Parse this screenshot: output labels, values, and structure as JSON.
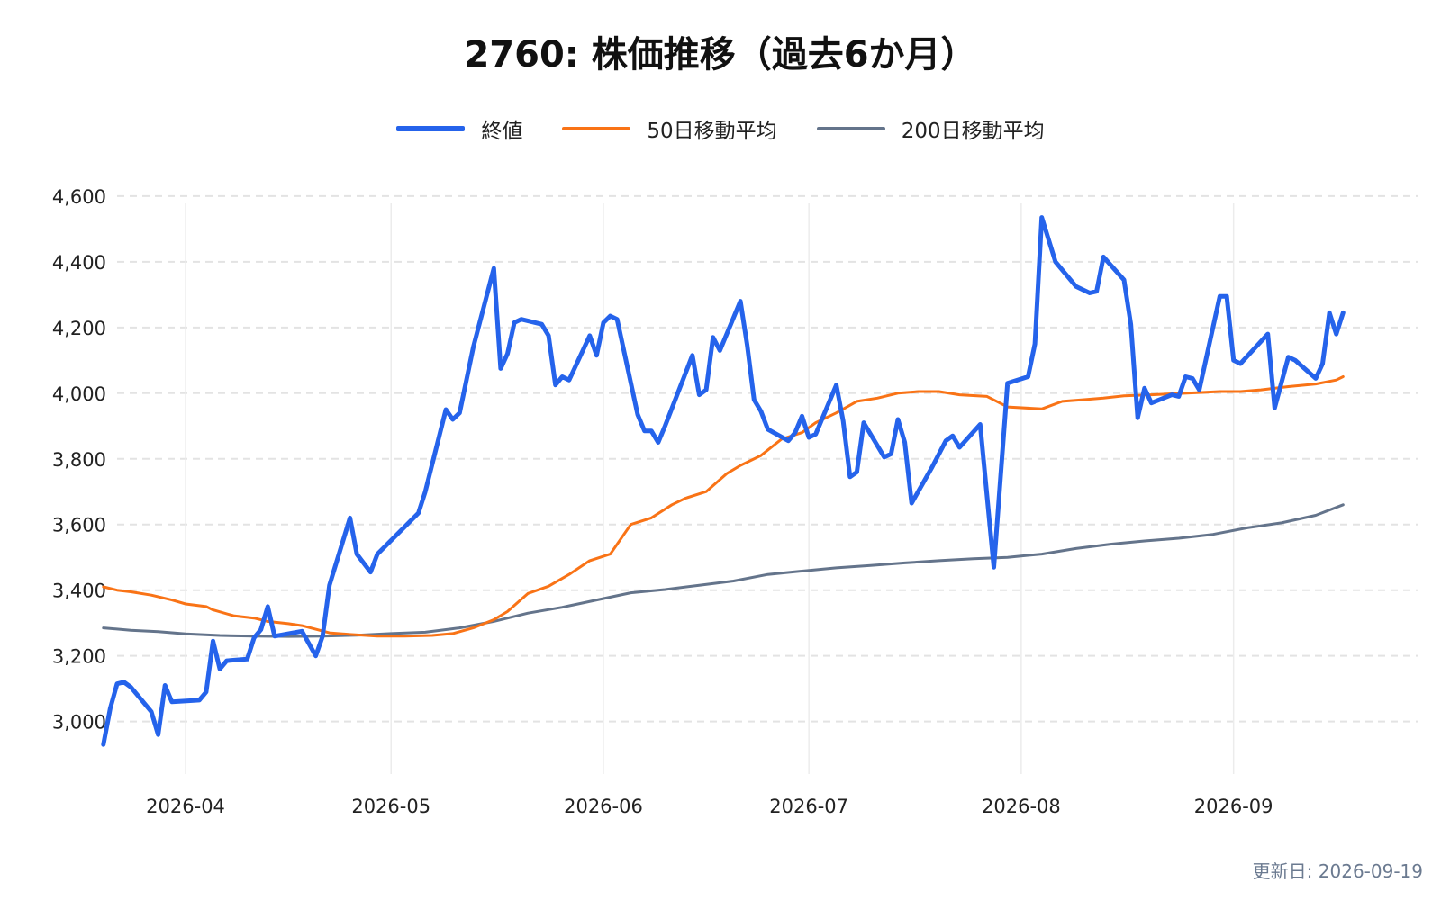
{
  "chart_data": {
    "type": "line",
    "title": "2760: 株価推移（過去6か月）",
    "xlabel": "",
    "ylabel": "",
    "xlim": [
      "2026-03-22",
      "2026-09-28"
    ],
    "ylim": [
      2840,
      4660
    ],
    "yticks": [
      3000,
      3200,
      3400,
      3600,
      3800,
      4000,
      4200,
      4400,
      4600
    ],
    "ytick_labels": [
      "3,000",
      "3,200",
      "3,400",
      "3,600",
      "3,800",
      "4,000",
      "4,200",
      "4,400",
      "4,600"
    ],
    "xticks": [
      "2026-04-01",
      "2026-05-01",
      "2026-06-01",
      "2026-07-01",
      "2026-08-01",
      "2026-09-01"
    ],
    "xtick_labels": [
      "2026-04",
      "2026-05",
      "2026-06",
      "2026-07",
      "2026-08",
      "2026-09"
    ],
    "grid": true,
    "legend_position": "top-center",
    "series": [
      {
        "name": "終値",
        "color": "#2563eb",
        "width": 5,
        "points": [
          [
            "2026-03-20",
            2930
          ],
          [
            "2026-03-21",
            3040
          ],
          [
            "2026-03-22",
            3115
          ],
          [
            "2026-03-23",
            3120
          ],
          [
            "2026-03-24",
            3105
          ],
          [
            "2026-03-27",
            3030
          ],
          [
            "2026-03-28",
            2960
          ],
          [
            "2026-03-29",
            3110
          ],
          [
            "2026-03-30",
            3060
          ],
          [
            "2026-04-03",
            3065
          ],
          [
            "2026-04-04",
            3090
          ],
          [
            "2026-04-05",
            3245
          ],
          [
            "2026-04-06",
            3160
          ],
          [
            "2026-04-07",
            3185
          ],
          [
            "2026-04-10",
            3190
          ],
          [
            "2026-04-11",
            3255
          ],
          [
            "2026-04-12",
            3280
          ],
          [
            "2026-04-13",
            3350
          ],
          [
            "2026-04-14",
            3260
          ],
          [
            "2026-04-18",
            3275
          ],
          [
            "2026-04-20",
            3200
          ],
          [
            "2026-04-21",
            3260
          ],
          [
            "2026-04-22",
            3415
          ],
          [
            "2026-04-25",
            3620
          ],
          [
            "2026-04-26",
            3510
          ],
          [
            "2026-04-28",
            3455
          ],
          [
            "2026-04-29",
            3510
          ],
          [
            "2026-05-05",
            3635
          ],
          [
            "2026-05-06",
            3700
          ],
          [
            "2026-05-09",
            3950
          ],
          [
            "2026-05-10",
            3920
          ],
          [
            "2026-05-11",
            3940
          ],
          [
            "2026-05-13",
            4140
          ],
          [
            "2026-05-16",
            4380
          ],
          [
            "2026-05-17",
            4075
          ],
          [
            "2026-05-18",
            4120
          ],
          [
            "2026-05-19",
            4215
          ],
          [
            "2026-05-20",
            4225
          ],
          [
            "2026-05-23",
            4210
          ],
          [
            "2026-05-24",
            4175
          ],
          [
            "2026-05-25",
            4025
          ],
          [
            "2026-05-26",
            4050
          ],
          [
            "2026-05-27",
            4040
          ],
          [
            "2026-05-30",
            4175
          ],
          [
            "2026-05-31",
            4115
          ],
          [
            "2026-06-01",
            4215
          ],
          [
            "2026-06-02",
            4235
          ],
          [
            "2026-06-03",
            4225
          ],
          [
            "2026-06-06",
            3935
          ],
          [
            "2026-06-07",
            3885
          ],
          [
            "2026-06-08",
            3885
          ],
          [
            "2026-06-09",
            3850
          ],
          [
            "2026-06-10",
            3900
          ],
          [
            "2026-06-14",
            4115
          ],
          [
            "2026-06-15",
            3995
          ],
          [
            "2026-06-16",
            4010
          ],
          [
            "2026-06-17",
            4170
          ],
          [
            "2026-06-18",
            4130
          ],
          [
            "2026-06-21",
            4280
          ],
          [
            "2026-06-22",
            4145
          ],
          [
            "2026-06-23",
            3980
          ],
          [
            "2026-06-24",
            3945
          ],
          [
            "2026-06-25",
            3890
          ],
          [
            "2026-06-28",
            3855
          ],
          [
            "2026-06-29",
            3880
          ],
          [
            "2026-06-30",
            3930
          ],
          [
            "2026-07-01",
            3865
          ],
          [
            "2026-07-02",
            3875
          ],
          [
            "2026-07-05",
            4025
          ],
          [
            "2026-07-06",
            3915
          ],
          [
            "2026-07-07",
            3745
          ],
          [
            "2026-07-08",
            3760
          ],
          [
            "2026-07-09",
            3910
          ],
          [
            "2026-07-12",
            3805
          ],
          [
            "2026-07-13",
            3815
          ],
          [
            "2026-07-14",
            3920
          ],
          [
            "2026-07-15",
            3850
          ],
          [
            "2026-07-16",
            3665
          ],
          [
            "2026-07-19",
            3775
          ],
          [
            "2026-07-21",
            3855
          ],
          [
            "2026-07-22",
            3870
          ],
          [
            "2026-07-23",
            3835
          ],
          [
            "2026-07-26",
            3905
          ],
          [
            "2026-07-28",
            3470
          ],
          [
            "2026-07-30",
            4030
          ],
          [
            "2026-08-02",
            4050
          ],
          [
            "2026-08-03",
            4150
          ],
          [
            "2026-08-04",
            4535
          ],
          [
            "2026-08-06",
            4400
          ],
          [
            "2026-08-09",
            4325
          ],
          [
            "2026-08-11",
            4305
          ],
          [
            "2026-08-12",
            4310
          ],
          [
            "2026-08-13",
            4415
          ],
          [
            "2026-08-16",
            4345
          ],
          [
            "2026-08-17",
            4210
          ],
          [
            "2026-08-18",
            3925
          ],
          [
            "2026-08-19",
            4015
          ],
          [
            "2026-08-20",
            3970
          ],
          [
            "2026-08-23",
            3995
          ],
          [
            "2026-08-24",
            3990
          ],
          [
            "2026-08-25",
            4050
          ],
          [
            "2026-08-26",
            4045
          ],
          [
            "2026-08-27",
            4010
          ],
          [
            "2026-08-30",
            4295
          ],
          [
            "2026-08-31",
            4295
          ],
          [
            "2026-09-01",
            4100
          ],
          [
            "2026-09-02",
            4090
          ],
          [
            "2026-09-06",
            4180
          ],
          [
            "2026-09-07",
            3955
          ],
          [
            "2026-09-09",
            4110
          ],
          [
            "2026-09-10",
            4100
          ],
          [
            "2026-09-13",
            4045
          ],
          [
            "2026-09-14",
            4090
          ],
          [
            "2026-09-15",
            4245
          ],
          [
            "2026-09-16",
            4180
          ],
          [
            "2026-09-17",
            4245
          ]
        ]
      },
      {
        "name": "50日移動平均",
        "color": "#f97316",
        "width": 3,
        "points": [
          [
            "2026-03-20",
            3410
          ],
          [
            "2026-03-22",
            3400
          ],
          [
            "2026-03-24",
            3395
          ],
          [
            "2026-03-27",
            3385
          ],
          [
            "2026-03-30",
            3370
          ],
          [
            "2026-04-01",
            3358
          ],
          [
            "2026-04-04",
            3350
          ],
          [
            "2026-04-05",
            3340
          ],
          [
            "2026-04-08",
            3322
          ],
          [
            "2026-04-11",
            3315
          ],
          [
            "2026-04-13",
            3305
          ],
          [
            "2026-04-16",
            3298
          ],
          [
            "2026-04-18",
            3292
          ],
          [
            "2026-04-22",
            3270
          ],
          [
            "2026-04-25",
            3265
          ],
          [
            "2026-04-29",
            3260
          ],
          [
            "2026-05-03",
            3260
          ],
          [
            "2026-05-07",
            3262
          ],
          [
            "2026-05-10",
            3268
          ],
          [
            "2026-05-13",
            3285
          ],
          [
            "2026-05-16",
            3310
          ],
          [
            "2026-05-18",
            3335
          ],
          [
            "2026-05-21",
            3390
          ],
          [
            "2026-05-24",
            3412
          ],
          [
            "2026-05-27",
            3448
          ],
          [
            "2026-05-30",
            3490
          ],
          [
            "2026-06-02",
            3510
          ],
          [
            "2026-06-05",
            3600
          ],
          [
            "2026-06-08",
            3620
          ],
          [
            "2026-06-11",
            3660
          ],
          [
            "2026-06-13",
            3680
          ],
          [
            "2026-06-16",
            3700
          ],
          [
            "2026-06-19",
            3755
          ],
          [
            "2026-06-21",
            3780
          ],
          [
            "2026-06-24",
            3810
          ],
          [
            "2026-06-27",
            3860
          ],
          [
            "2026-06-30",
            3880
          ],
          [
            "2026-07-02",
            3910
          ],
          [
            "2026-07-05",
            3940
          ],
          [
            "2026-07-08",
            3975
          ],
          [
            "2026-07-11",
            3985
          ],
          [
            "2026-07-14",
            4000
          ],
          [
            "2026-07-17",
            4005
          ],
          [
            "2026-07-20",
            4005
          ],
          [
            "2026-07-23",
            3995
          ],
          [
            "2026-07-27",
            3990
          ],
          [
            "2026-07-30",
            3958
          ],
          [
            "2026-08-04",
            3952
          ],
          [
            "2026-08-07",
            3975
          ],
          [
            "2026-08-10",
            3980
          ],
          [
            "2026-08-13",
            3985
          ],
          [
            "2026-08-16",
            3992
          ],
          [
            "2026-08-20",
            3995
          ],
          [
            "2026-08-23",
            3998
          ],
          [
            "2026-08-27",
            4002
          ],
          [
            "2026-08-30",
            4005
          ],
          [
            "2026-09-02",
            4005
          ],
          [
            "2026-09-05",
            4010
          ],
          [
            "2026-09-09",
            4020
          ],
          [
            "2026-09-13",
            4028
          ],
          [
            "2026-09-16",
            4040
          ],
          [
            "2026-09-17",
            4050
          ]
        ]
      },
      {
        "name": "200日移動平均",
        "color": "#64748b",
        "width": 3,
        "points": [
          [
            "2026-03-20",
            3285
          ],
          [
            "2026-03-24",
            3278
          ],
          [
            "2026-03-28",
            3274
          ],
          [
            "2026-04-01",
            3267
          ],
          [
            "2026-04-06",
            3262
          ],
          [
            "2026-04-11",
            3260
          ],
          [
            "2026-04-16",
            3259
          ],
          [
            "2026-04-21",
            3260
          ],
          [
            "2026-04-26",
            3263
          ],
          [
            "2026-05-01",
            3268
          ],
          [
            "2026-05-06",
            3272
          ],
          [
            "2026-05-11",
            3285
          ],
          [
            "2026-05-16",
            3305
          ],
          [
            "2026-05-21",
            3330
          ],
          [
            "2026-05-26",
            3348
          ],
          [
            "2026-05-31",
            3370
          ],
          [
            "2026-06-05",
            3392
          ],
          [
            "2026-06-10",
            3402
          ],
          [
            "2026-06-15",
            3415
          ],
          [
            "2026-06-20",
            3428
          ],
          [
            "2026-06-25",
            3448
          ],
          [
            "2026-06-30",
            3458
          ],
          [
            "2026-07-05",
            3468
          ],
          [
            "2026-07-10",
            3475
          ],
          [
            "2026-07-15",
            3483
          ],
          [
            "2026-07-20",
            3490
          ],
          [
            "2026-07-25",
            3496
          ],
          [
            "2026-07-30",
            3500
          ],
          [
            "2026-08-04",
            3510
          ],
          [
            "2026-08-09",
            3527
          ],
          [
            "2026-08-14",
            3540
          ],
          [
            "2026-08-19",
            3550
          ],
          [
            "2026-08-24",
            3558
          ],
          [
            "2026-08-29",
            3570
          ],
          [
            "2026-09-03",
            3590
          ],
          [
            "2026-09-08",
            3605
          ],
          [
            "2026-09-13",
            3628
          ],
          [
            "2026-09-17",
            3660
          ]
        ]
      }
    ],
    "footer": "更新日: 2026-09-19"
  },
  "colors": {
    "background": "#ffffff",
    "grid": "#e3e3e3",
    "axis_text": "#222222",
    "footer_text": "#6b7a90"
  }
}
